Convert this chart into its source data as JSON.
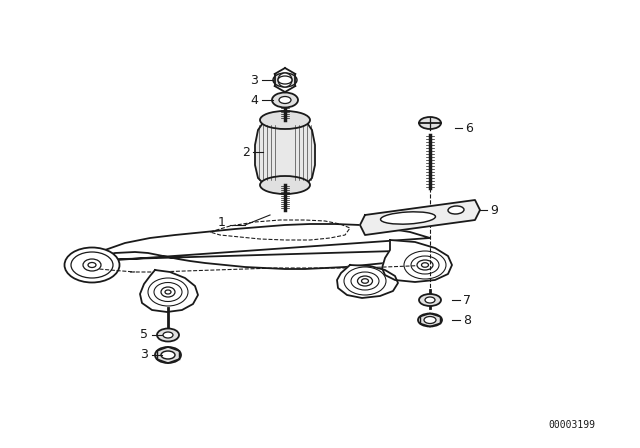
{
  "bg_color": "#ffffff",
  "line_color": "#1a1a1a",
  "label_color": "#1a1a1a",
  "diagram_code": "00003199",
  "font_size_label": 9,
  "font_size_code": 7,
  "fig_w": 6.4,
  "fig_h": 4.48,
  "dpi": 100
}
